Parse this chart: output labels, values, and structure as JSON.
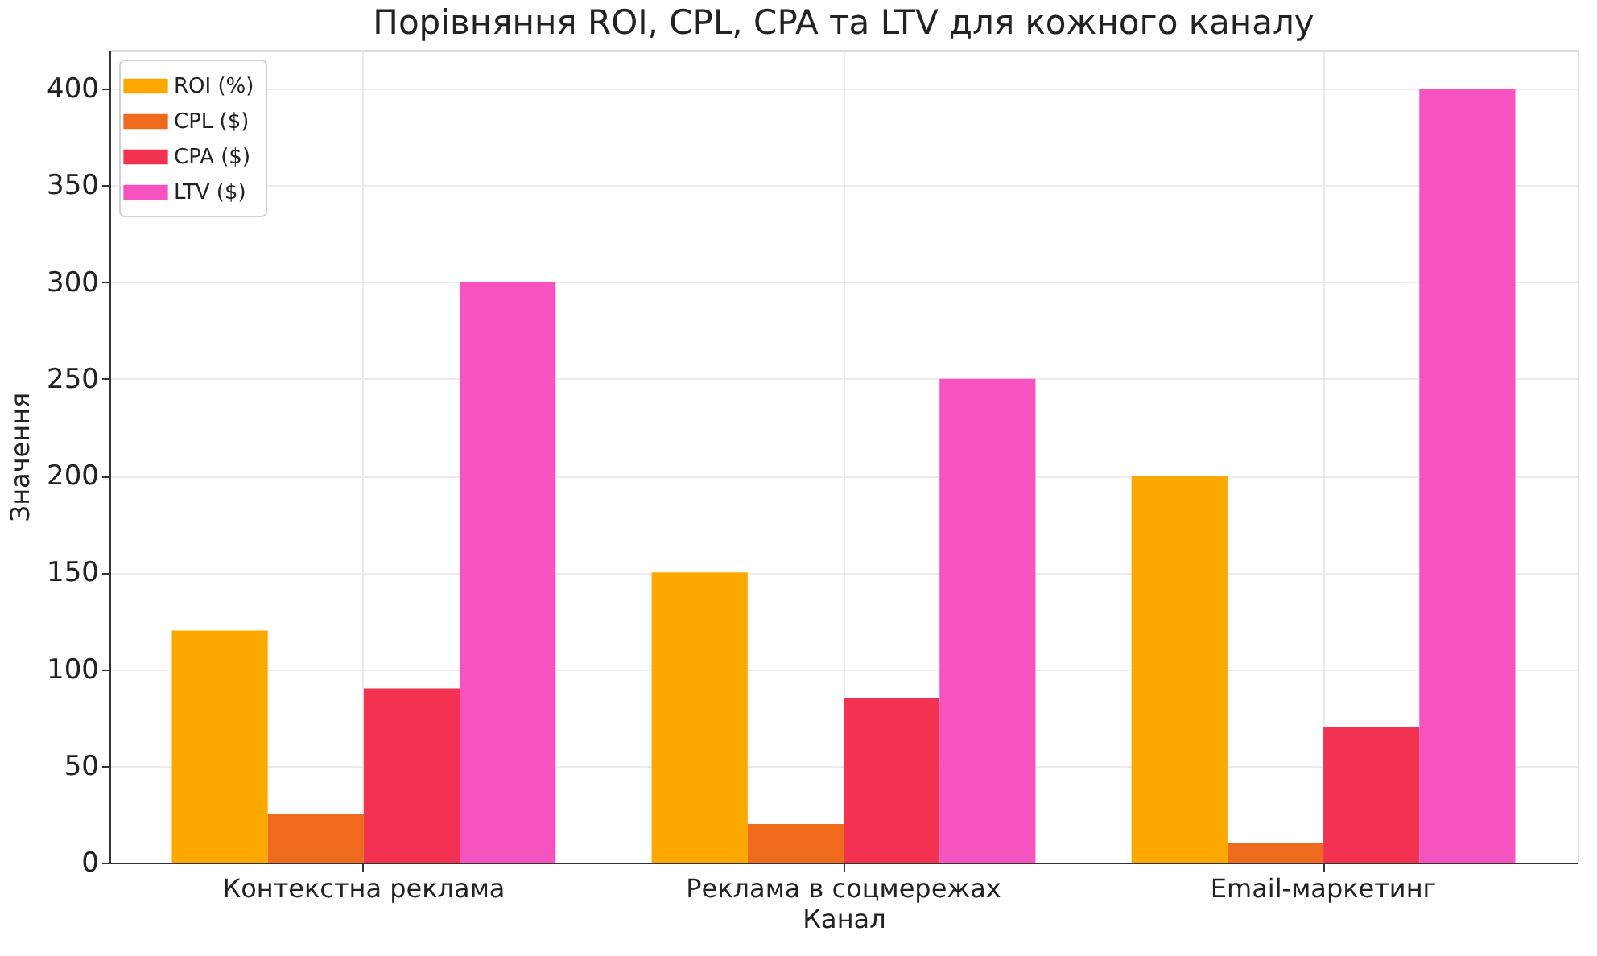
{
  "chart_data": {
    "type": "bar",
    "title": "Порівняння ROI, CPL, CPA та LTV для кожного каналу",
    "xlabel": "Канал",
    "ylabel": "Значення",
    "categories": [
      "Контекстна реклама",
      "Реклама в соцмережах",
      "Email-маркетинг"
    ],
    "series": [
      {
        "name": "ROI (%)",
        "color": "#fba800",
        "values": [
          120,
          150,
          200
        ]
      },
      {
        "name": "CPL ($)",
        "color": "#f06a1e",
        "values": [
          25,
          20,
          10
        ]
      },
      {
        "name": "CPA ($)",
        "color": "#f33150",
        "values": [
          90,
          85,
          70
        ]
      },
      {
        "name": "LTV ($)",
        "color": "#f653c0",
        "values": [
          300,
          250,
          400
        ]
      }
    ],
    "ylim": [
      0,
      420
    ],
    "yticks": [
      0,
      50,
      100,
      150,
      200,
      250,
      300,
      350,
      400
    ],
    "grid": true,
    "legend": "top left"
  }
}
